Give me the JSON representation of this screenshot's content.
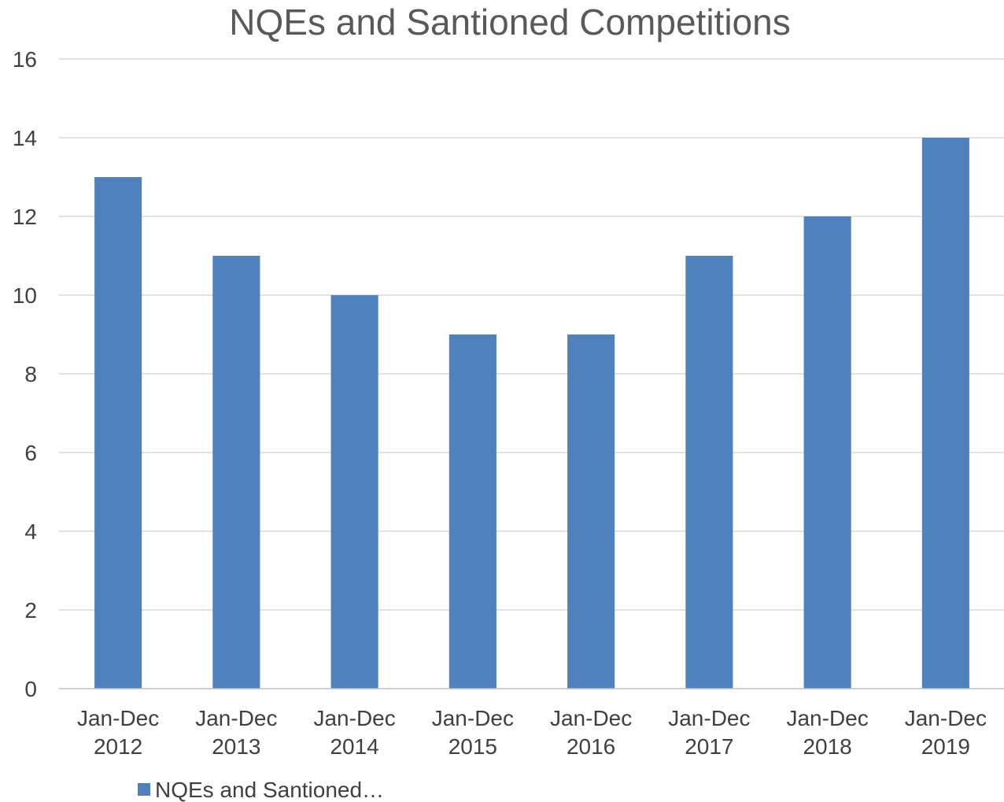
{
  "chart_data": {
    "type": "bar",
    "title": "NQEs and Santioned Competitions",
    "categories": [
      [
        "Jan-Dec",
        "2012"
      ],
      [
        "Jan-Dec",
        "2013"
      ],
      [
        "Jan-Dec",
        "2014"
      ],
      [
        "Jan-Dec",
        "2015"
      ],
      [
        "Jan-Dec",
        "2016"
      ],
      [
        "Jan-Dec",
        "2017"
      ],
      [
        "Jan-Dec",
        "2018"
      ],
      [
        "Jan-Dec",
        "2019"
      ]
    ],
    "series": [
      {
        "name": "NQEs and Santioned…",
        "values": [
          13,
          11,
          10,
          9,
          9,
          11,
          12,
          14
        ],
        "color": "#4f81bd"
      }
    ],
    "xlabel": "",
    "ylabel": "",
    "ylim": [
      0,
      16
    ],
    "yticks": [
      0,
      2,
      4,
      6,
      8,
      10,
      12,
      14,
      16
    ],
    "grid": true,
    "legend_position": "bottom-left"
  }
}
